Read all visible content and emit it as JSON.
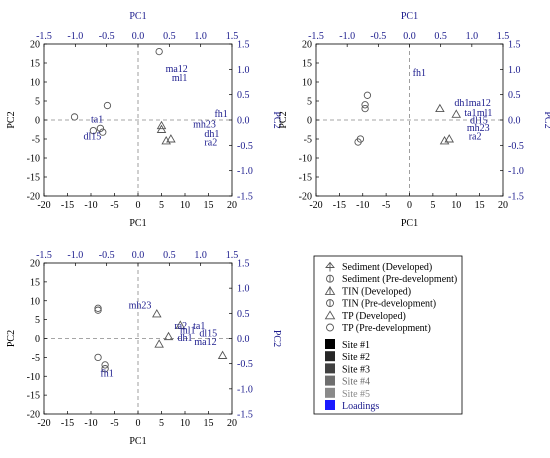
{
  "colors": {
    "axis": "#000000",
    "loading_text": "#1a1a8c",
    "dash": "#888888",
    "marker": "#555555",
    "legend_blue": "#1a1aff"
  },
  "panels": [
    {
      "id": "top-left",
      "chart_data": {
        "type": "scatter",
        "xlabel": "PC1",
        "ylabel": "PC2",
        "top_axis_label": "PC1",
        "right_axis_label": "PC2",
        "xlim": [
          -20,
          20
        ],
        "ylim": [
          -20,
          20
        ],
        "top_lim": [
          -1.5,
          1.5
        ],
        "right_lim": [
          -1.5,
          1.5
        ],
        "x_ticks": [
          "-20",
          "-15",
          "-10",
          "-5",
          "0",
          "5",
          "10",
          "15",
          "20"
        ],
        "y_ticks": [
          "20",
          "15",
          "10",
          "5",
          "0",
          "-5",
          "-10",
          "-15",
          "-20"
        ],
        "top_ticks": [
          "-1.5",
          "-1.0",
          "-0.5",
          "0.0",
          "0.5",
          "1.0",
          "1.5"
        ],
        "right_ticks": [
          "1.5",
          "1.0",
          "0.5",
          "0.0",
          "-0.5",
          "-1.0",
          "-1.5"
        ],
        "points": [
          {
            "m": "circle",
            "x": 4.5,
            "y": 18
          },
          {
            "m": "circle",
            "x": -6.5,
            "y": 3.8
          },
          {
            "m": "circle",
            "x": -13.5,
            "y": 0.8
          },
          {
            "m": "circle",
            "x": -9.5,
            "y": -2.8
          },
          {
            "m": "circle",
            "x": -8,
            "y": -2.2
          },
          {
            "m": "circle",
            "x": -7.5,
            "y": -3.2
          },
          {
            "m": "triangle",
            "x": 5,
            "y": -1.5
          },
          {
            "m": "triangle",
            "x": 5,
            "y": -2.5
          },
          {
            "m": "triangle",
            "x": 6,
            "y": -5.5
          },
          {
            "m": "triangle",
            "x": 7,
            "y": -5
          }
        ],
        "loadings": [
          {
            "label": "ma12",
            "x": 0.44,
            "y": 0.95
          },
          {
            "label": "ml1",
            "x": 0.54,
            "y": 0.77
          },
          {
            "label": "fh1",
            "x": 1.22,
            "y": 0.06
          },
          {
            "label": "mh23",
            "x": 0.88,
            "y": -0.15
          },
          {
            "label": "dh1",
            "x": 1.06,
            "y": -0.34
          },
          {
            "label": "ra2",
            "x": 1.06,
            "y": -0.5
          },
          {
            "label": "ta1",
            "x": -0.75,
            "y": -0.05
          },
          {
            "label": "dl15",
            "x": -0.87,
            "y": -0.38
          }
        ]
      }
    },
    {
      "id": "top-right",
      "chart_data": {
        "type": "scatter",
        "xlabel": "PC1",
        "ylabel": "PC2",
        "top_axis_label": "PC1",
        "right_axis_label": "PC2",
        "xlim": [
          -20,
          20
        ],
        "ylim": [
          -20,
          20
        ],
        "top_lim": [
          -1.5,
          1.5
        ],
        "right_lim": [
          -1.5,
          1.5
        ],
        "x_ticks": [
          "-20",
          "-15",
          "-10",
          "-5",
          "0",
          "5",
          "10",
          "15",
          "20"
        ],
        "y_ticks": [
          "20",
          "15",
          "10",
          "5",
          "0",
          "-5",
          "-10",
          "-15",
          "-20"
        ],
        "top_ticks": [
          "-1.5",
          "-1.0",
          "-0.5",
          "0.0",
          "0.5",
          "1.0",
          "1.5"
        ],
        "right_ticks": [
          "1.5",
          "1.0",
          "0.5",
          "0.0",
          "-0.5",
          "-1.0",
          "-1.5"
        ],
        "points": [
          {
            "m": "circle",
            "x": -9,
            "y": 6.5
          },
          {
            "m": "circle",
            "x": -9.5,
            "y": 4
          },
          {
            "m": "circle",
            "x": -9.5,
            "y": 3
          },
          {
            "m": "circle",
            "x": -10.5,
            "y": -5
          },
          {
            "m": "circle",
            "x": -11,
            "y": -5.8
          },
          {
            "m": "triangle",
            "x": 6.5,
            "y": 3
          },
          {
            "m": "triangle",
            "x": 10,
            "y": 1.5
          },
          {
            "m": "triangle",
            "x": 7.5,
            "y": -5.5
          },
          {
            "m": "triangle",
            "x": 8.5,
            "y": -5
          }
        ],
        "loadings": [
          {
            "label": "fh1",
            "x": 0.05,
            "y": 0.87
          },
          {
            "label": "dh1",
            "x": 0.72,
            "y": 0.28
          },
          {
            "label": "ma12",
            "x": 0.95,
            "y": 0.28
          },
          {
            "label": "ta1",
            "x": 0.88,
            "y": 0.08
          },
          {
            "label": "ml1",
            "x": 1.08,
            "y": 0.08
          },
          {
            "label": "dl15",
            "x": 0.97,
            "y": -0.07
          },
          {
            "label": "mh23",
            "x": 0.92,
            "y": -0.22
          },
          {
            "label": "ra2",
            "x": 0.95,
            "y": -0.38
          }
        ]
      }
    },
    {
      "id": "bottom-left",
      "chart_data": {
        "type": "scatter",
        "xlabel": "PC1",
        "ylabel": "PC2",
        "top_axis_label": "",
        "right_axis_label": "PC2",
        "xlim": [
          -20,
          20
        ],
        "ylim": [
          -20,
          20
        ],
        "top_lim": [
          -1.5,
          1.5
        ],
        "right_lim": [
          -1.5,
          1.5
        ],
        "x_ticks": [
          "-20",
          "-15",
          "-10",
          "-5",
          "0",
          "5",
          "10",
          "15",
          "20"
        ],
        "y_ticks": [
          "20",
          "15",
          "10",
          "5",
          "0",
          "-5",
          "-10",
          "-15",
          "-20"
        ],
        "top_ticks": [
          "-1.5",
          "-1.0",
          "-0.5",
          "0.0",
          "0.5",
          "1.0",
          "1.5"
        ],
        "right_ticks": [
          "1.5",
          "1.0",
          "0.5",
          "0.0",
          "-0.5",
          "-1.0",
          "-1.5"
        ],
        "points": [
          {
            "m": "circle",
            "x": -8.5,
            "y": 8
          },
          {
            "m": "circle",
            "x": -8.5,
            "y": 7.5
          },
          {
            "m": "circle",
            "x": -8.5,
            "y": -5
          },
          {
            "m": "circle",
            "x": -7,
            "y": -7
          },
          {
            "m": "circle",
            "x": -7,
            "y": -8
          },
          {
            "m": "triangle",
            "x": 4,
            "y": 6.5
          },
          {
            "m": "triangle",
            "x": 4.5,
            "y": -1.5
          },
          {
            "m": "triangle",
            "x": 6.5,
            "y": 0.5
          },
          {
            "m": "triangle",
            "x": 9,
            "y": 3.5
          },
          {
            "m": "triangle",
            "x": 18,
            "y": -4.5
          }
        ],
        "loadings": [
          {
            "label": "mh23",
            "x": -0.15,
            "y": 0.6
          },
          {
            "label": "ra2",
            "x": 0.58,
            "y": 0.19
          },
          {
            "label": "ta1",
            "x": 0.88,
            "y": 0.19
          },
          {
            "label": "ml1",
            "x": 0.67,
            "y": 0.1
          },
          {
            "label": "dl15",
            "x": 0.98,
            "y": 0.04
          },
          {
            "label": "dh1",
            "x": 0.63,
            "y": -0.05
          },
          {
            "label": "ma12",
            "x": 0.9,
            "y": -0.13
          },
          {
            "label": "fh1",
            "x": -0.6,
            "y": -0.75
          }
        ]
      }
    }
  ],
  "legend": {
    "markers": [
      {
        "label": "Sediment (Developed)",
        "marker": "arrow-up"
      },
      {
        "label": "Sediment (Pre-development)",
        "marker": "circle-bar"
      },
      {
        "label": "TIN (Developed)",
        "marker": "triangle-bar"
      },
      {
        "label": "TIN (Pre-development)",
        "marker": "circle-bar"
      },
      {
        "label": "TP (Developed)",
        "marker": "triangle"
      },
      {
        "label": "TP (Pre-development)",
        "marker": "circle"
      }
    ],
    "sites": [
      {
        "label": "Site #1",
        "color": "#000000",
        "text_color": "#000000"
      },
      {
        "label": "Site #2",
        "color": "#262626",
        "text_color": "#000000"
      },
      {
        "label": "Site #3",
        "color": "#404040",
        "text_color": "#000000"
      },
      {
        "label": "Site #4",
        "color": "#6e6e6e",
        "text_color": "#6e6e6e"
      },
      {
        "label": "Site #5",
        "color": "#8a8a8a",
        "text_color": "#8a8a8a"
      },
      {
        "label": "Loadings",
        "color": "#1a1aff",
        "text_color": "#1a1a8c"
      }
    ]
  }
}
